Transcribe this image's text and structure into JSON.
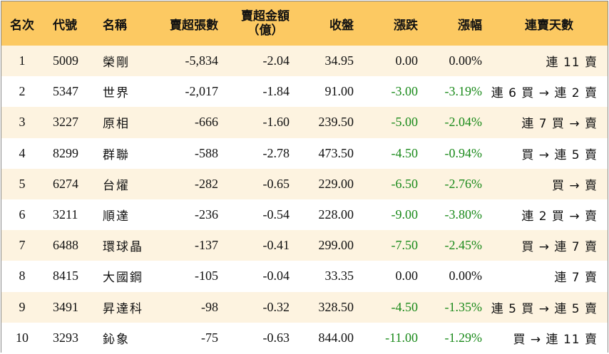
{
  "headers": {
    "rank": "名次",
    "code": "代號",
    "name": "名稱",
    "sheets": "賣超張數",
    "amount_line1": "賣超金額",
    "amount_line2": "（億）",
    "close": "收盤",
    "change": "漲跌",
    "pct": "漲幅",
    "days": "連賣天數"
  },
  "colors": {
    "header_bg": "#fcc962",
    "odd_row_bg": "#fdf3e0",
    "negative": "#1a8a1a"
  },
  "rows": [
    {
      "rank": "1",
      "code": "5009",
      "name": "榮剛",
      "sheets": "-5,834",
      "amount": "-2.04",
      "close": "34.95",
      "change": "0.00",
      "pct": "0.00%",
      "days": "連 11 賣",
      "dir": "neu"
    },
    {
      "rank": "2",
      "code": "5347",
      "name": "世界",
      "sheets": "-2,017",
      "amount": "-1.84",
      "close": "91.00",
      "change": "-3.00",
      "pct": "-3.19%",
      "days": "連 6 買 → 連 2 賣",
      "dir": "neg"
    },
    {
      "rank": "3",
      "code": "3227",
      "name": "原相",
      "sheets": "-666",
      "amount": "-1.60",
      "close": "239.50",
      "change": "-5.00",
      "pct": "-2.04%",
      "days": "連 7 買 → 賣",
      "dir": "neg"
    },
    {
      "rank": "4",
      "code": "8299",
      "name": "群聯",
      "sheets": "-588",
      "amount": "-2.78",
      "close": "473.50",
      "change": "-4.50",
      "pct": "-0.94%",
      "days": "買 → 連 5 賣",
      "dir": "neg"
    },
    {
      "rank": "5",
      "code": "6274",
      "name": "台燿",
      "sheets": "-282",
      "amount": "-0.65",
      "close": "229.00",
      "change": "-6.50",
      "pct": "-2.76%",
      "days": "買 → 賣",
      "dir": "neg"
    },
    {
      "rank": "6",
      "code": "3211",
      "name": "順達",
      "sheets": "-236",
      "amount": "-0.54",
      "close": "228.00",
      "change": "-9.00",
      "pct": "-3.80%",
      "days": "連 2 買 → 賣",
      "dir": "neg"
    },
    {
      "rank": "7",
      "code": "6488",
      "name": "環球晶",
      "sheets": "-137",
      "amount": "-0.41",
      "close": "299.00",
      "change": "-7.50",
      "pct": "-2.45%",
      "days": "買 → 連 7 賣",
      "dir": "neg"
    },
    {
      "rank": "8",
      "code": "8415",
      "name": "大國鋼",
      "sheets": "-105",
      "amount": "-0.04",
      "close": "33.35",
      "change": "0.00",
      "pct": "0.00%",
      "days": "連 7 賣",
      "dir": "neu"
    },
    {
      "rank": "9",
      "code": "3491",
      "name": "昇達科",
      "sheets": "-98",
      "amount": "-0.32",
      "close": "328.50",
      "change": "-4.50",
      "pct": "-1.35%",
      "days": "連 5 買 → 連 5 賣",
      "dir": "neg"
    },
    {
      "rank": "10",
      "code": "3293",
      "name": "鈊象",
      "sheets": "-75",
      "amount": "-0.63",
      "close": "844.00",
      "change": "-11.00",
      "pct": "-1.29%",
      "days": "買 → 連 11 賣",
      "dir": "neg"
    }
  ]
}
